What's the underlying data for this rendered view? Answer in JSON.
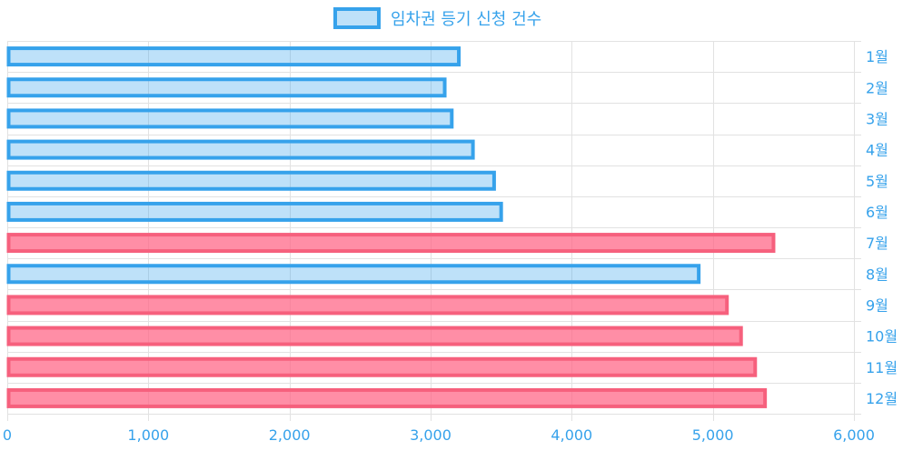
{
  "chart_data": {
    "type": "bar",
    "orientation": "horizontal",
    "categories": [
      "1월",
      "2월",
      "3월",
      "4월",
      "5월",
      "6월",
      "7월",
      "8월",
      "9월",
      "10월",
      "11월",
      "12월"
    ],
    "series": [
      {
        "name": "임차권 등기 신청 건수",
        "values": [
          3200,
          3100,
          3150,
          3300,
          3450,
          3500,
          5430,
          4900,
          5100,
          5200,
          5300,
          5370
        ]
      }
    ],
    "xlim": [
      0,
      6000
    ],
    "xticks": [
      0,
      1000,
      2000,
      3000,
      4000,
      5000,
      6000
    ],
    "xtick_labels": [
      "0",
      "1,000",
      "2,000",
      "3,000",
      "4,000",
      "5,000",
      "6,000"
    ],
    "y_axis_position": "right",
    "grid": true,
    "legend_position": "top-center",
    "highlight_threshold": 5000,
    "colors": {
      "normal_fill": "rgba(54,162,235,0.32)",
      "normal_border": "#36A2EB",
      "high_fill": "rgba(255,99,132,0.72)",
      "high_border": "#F6607D",
      "text": "#36A2EB",
      "grid": "#e2e2e2"
    }
  }
}
